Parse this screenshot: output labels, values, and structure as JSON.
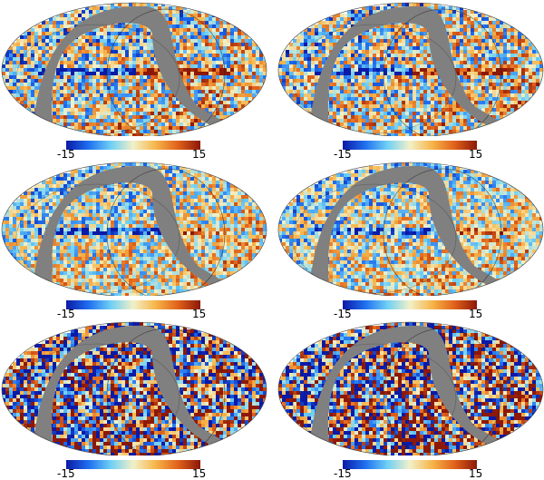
{
  "figure": {
    "panels": [
      {
        "name": "panel-1",
        "colorbar": {
          "min_label": "-15",
          "max_label": "15"
        }
      },
      {
        "name": "panel-2",
        "colorbar": {
          "min_label": "-15",
          "max_label": "15"
        }
      },
      {
        "name": "panel-3",
        "colorbar": {
          "min_label": "-15",
          "max_label": "15"
        }
      },
      {
        "name": "panel-4",
        "colorbar": {
          "min_label": "-15",
          "max_label": "15"
        }
      },
      {
        "name": "panel-5",
        "colorbar": {
          "min_label": "-15",
          "max_label": "15"
        }
      },
      {
        "name": "panel-6",
        "colorbar": {
          "min_label": "-15",
          "max_label": "15"
        }
      }
    ],
    "colormap": [
      "#0b1aa6",
      "#1f6ff0",
      "#6fd0f5",
      "#f2f0c8",
      "#f7b54a",
      "#e0611a",
      "#8c1808"
    ],
    "mask_color": "#808080"
  }
}
